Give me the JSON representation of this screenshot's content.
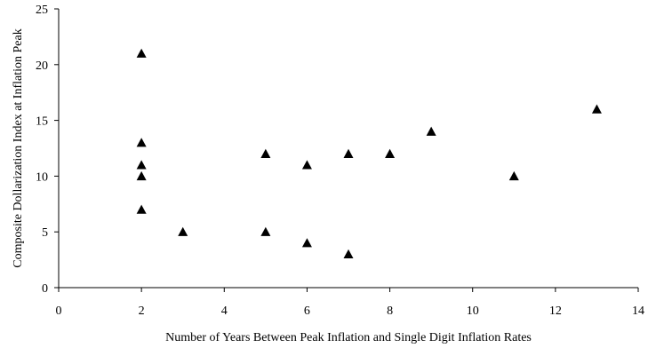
{
  "chart_data": {
    "type": "scatter",
    "title": "",
    "xlabel": "Number of Years Between Peak Inflation and Single Digit Inflation Rates",
    "ylabel": "Composite Dollarization Index at Inflation Peak",
    "xlim": [
      0,
      14
    ],
    "ylim": [
      0,
      25
    ],
    "x_ticks": [
      "0",
      "2",
      "4",
      "6",
      "8",
      "10",
      "12",
      "14"
    ],
    "y_ticks": [
      "0",
      "5",
      "10",
      "15",
      "20",
      "25"
    ],
    "grid": false,
    "legend": "none",
    "marker": "triangle",
    "marker_color": "#000000",
    "points": [
      {
        "x": 2,
        "y": 21
      },
      {
        "x": 2,
        "y": 13
      },
      {
        "x": 2,
        "y": 11
      },
      {
        "x": 2,
        "y": 10
      },
      {
        "x": 2,
        "y": 7
      },
      {
        "x": 3,
        "y": 5
      },
      {
        "x": 5,
        "y": 12
      },
      {
        "x": 5,
        "y": 5
      },
      {
        "x": 6,
        "y": 11
      },
      {
        "x": 6,
        "y": 4
      },
      {
        "x": 7,
        "y": 12
      },
      {
        "x": 7,
        "y": 3
      },
      {
        "x": 8,
        "y": 12
      },
      {
        "x": 9,
        "y": 14
      },
      {
        "x": 11,
        "y": 10
      },
      {
        "x": 13,
        "y": 16
      }
    ]
  }
}
